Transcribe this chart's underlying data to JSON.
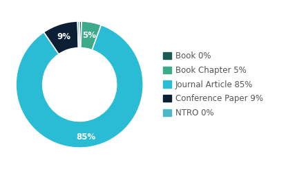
{
  "labels": [
    "Book",
    "Book Chapter",
    "Journal Article",
    "Conference Paper",
    "NTRO"
  ],
  "values": [
    0.5,
    5,
    85,
    9,
    0.5
  ],
  "display_pcts": [
    "0%",
    "5%",
    "85%",
    "9%",
    "0%"
  ],
  "colors": [
    "#1a5c55",
    "#3daa8a",
    "#29bcd4",
    "#0d1f35",
    "#4db8c8"
  ],
  "legend_labels": [
    "Book 0%",
    "Book Chapter 5%",
    "Journal Article 85%",
    "Conference Paper 9%",
    "NTRO 0%"
  ],
  "background_color": "#ffffff",
  "text_color": "#555555",
  "label_fontsize": 8.5,
  "legend_fontsize": 8.5,
  "donut_width": 0.42,
  "startangle": 90
}
